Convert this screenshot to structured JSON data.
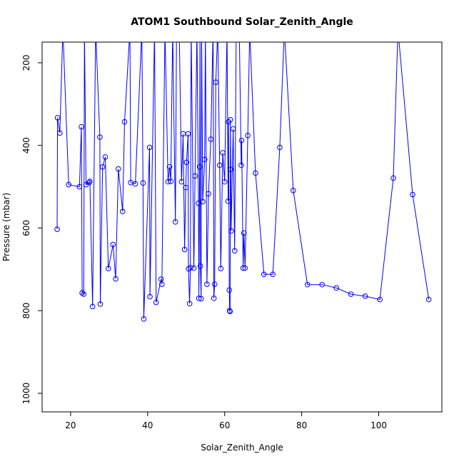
{
  "chart_data": {
    "type": "line",
    "title": "ATOM1 Southbound Solar_Zenith_Angle",
    "xlabel": "Solar_Zenith_Angle",
    "ylabel": "Pressure (mbar)",
    "xlim": [
      12.6,
      116.4
    ],
    "ylim": [
      1045,
      150
    ],
    "y_inverted": true,
    "grid": false,
    "legend": "none",
    "marker": "open-circle",
    "x_ticks": [
      20,
      40,
      60,
      80,
      100
    ],
    "y_ticks": [
      200,
      400,
      600,
      800,
      1000
    ],
    "colors": {
      "series": "#0000ff",
      "axis": "#000000",
      "background": "#ffffff"
    },
    "series": [
      {
        "color": "#0000ff",
        "points": [
          [
            16.5,
            603
          ],
          [
            16.6,
            333
          ],
          [
            17.2,
            370
          ],
          [
            18,
            120
          ],
          [
            19.5,
            495
          ],
          [
            22.3,
            500
          ],
          [
            22.8,
            355
          ],
          [
            23,
            757
          ],
          [
            23.4,
            760
          ],
          [
            23.6,
            120
          ],
          [
            24,
            495
          ],
          [
            24.8,
            490
          ],
          [
            25,
            487
          ],
          [
            25.7,
            790
          ],
          [
            26.5,
            120
          ],
          [
            27.6,
            380
          ],
          [
            27.7,
            784
          ],
          [
            28.3,
            452
          ],
          [
            29,
            428
          ],
          [
            29.8,
            698
          ],
          [
            31,
            640
          ],
          [
            31.7,
            723
          ],
          [
            32.4,
            457
          ],
          [
            33.5,
            560
          ],
          [
            34,
            343
          ],
          [
            35.4,
            120
          ],
          [
            35.6,
            490
          ],
          [
            36.8,
            493
          ],
          [
            38.5,
            120
          ],
          [
            38.8,
            491
          ],
          [
            39,
            820
          ],
          [
            40.5,
            405
          ],
          [
            40.6,
            766
          ],
          [
            41.8,
            120
          ],
          [
            42.2,
            780
          ],
          [
            43.5,
            724
          ],
          [
            43.7,
            736
          ],
          [
            44.5,
            120
          ],
          [
            45.3,
            488
          ],
          [
            45.7,
            452
          ],
          [
            46,
            487
          ],
          [
            46.5,
            120
          ],
          [
            47.2,
            585
          ],
          [
            47.5,
            120
          ],
          [
            48.2,
            120
          ],
          [
            48.8,
            488
          ],
          [
            49.2,
            372
          ],
          [
            49.6,
            652
          ],
          [
            49.9,
            502
          ],
          [
            50.1,
            441
          ],
          [
            50.5,
            372
          ],
          [
            50.6,
            699
          ],
          [
            50.9,
            783
          ],
          [
            51.1,
            696
          ],
          [
            51.3,
            120
          ],
          [
            52,
            697
          ],
          [
            52.3,
            474
          ],
          [
            52.8,
            120
          ],
          [
            53.2,
            540
          ],
          [
            53.3,
            770
          ],
          [
            53.5,
            452
          ],
          [
            53.6,
            120
          ],
          [
            53.7,
            692
          ],
          [
            53.9,
            771
          ],
          [
            54,
            120
          ],
          [
            54.3,
            536
          ],
          [
            54.8,
            434
          ],
          [
            55,
            120
          ],
          [
            55.4,
            736
          ],
          [
            55.8,
            517
          ],
          [
            56.4,
            385
          ],
          [
            57,
            120
          ],
          [
            57.2,
            770
          ],
          [
            57.4,
            736
          ],
          [
            57.7,
            247
          ],
          [
            58.2,
            120
          ],
          [
            58.7,
            448
          ],
          [
            59,
            698
          ],
          [
            59.5,
            418
          ],
          [
            60,
            488
          ],
          [
            60.6,
            120
          ],
          [
            60.9,
            535
          ],
          [
            61,
            343
          ],
          [
            61.2,
            750
          ],
          [
            61.3,
            800
          ],
          [
            61.4,
            802
          ],
          [
            61.5,
            338
          ],
          [
            61.6,
            458
          ],
          [
            61.7,
            607
          ],
          [
            62.2,
            360
          ],
          [
            62.6,
            655
          ],
          [
            63,
            120
          ],
          [
            63.8,
            120
          ],
          [
            64.3,
            448
          ],
          [
            64.4,
            388
          ],
          [
            64.8,
            697
          ],
          [
            65,
            612
          ],
          [
            65.3,
            697
          ],
          [
            66,
            376
          ],
          [
            66.5,
            120
          ],
          [
            68,
            467
          ],
          [
            70.2,
            712
          ],
          [
            72.5,
            712
          ],
          [
            74.3,
            405
          ],
          [
            75.5,
            120
          ],
          [
            77.8,
            509
          ],
          [
            81.5,
            737
          ],
          [
            85.3,
            737
          ],
          [
            89,
            745
          ],
          [
            92.8,
            760
          ],
          [
            96.5,
            765
          ],
          [
            100.3,
            773
          ],
          [
            103.8,
            479
          ],
          [
            105,
            120
          ],
          [
            108.8,
            519
          ],
          [
            113,
            773
          ]
        ]
      }
    ]
  }
}
